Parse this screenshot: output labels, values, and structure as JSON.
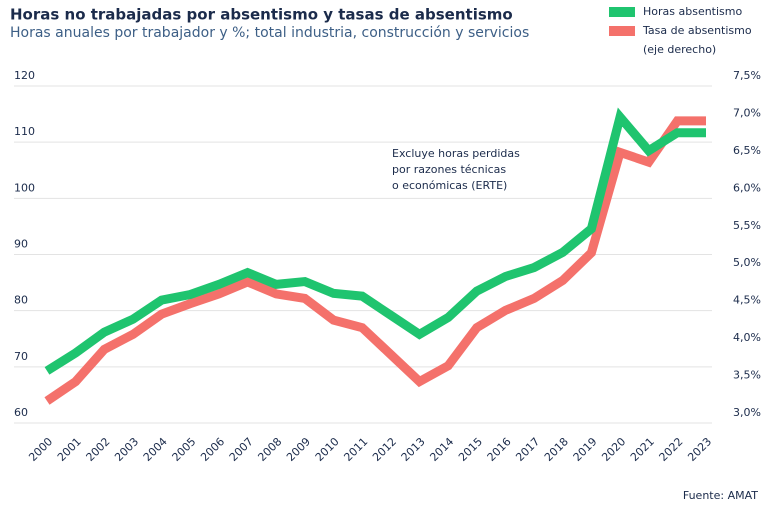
{
  "chart_data": {
    "type": "line",
    "title": "Horas no trabajadas por absentismo y tasas de absentismo",
    "subtitle": "Horas anuales por trabajador y %; total industria, construcción y servicios",
    "annotation": [
      "Excluye horas perdidas",
      "por razones técnicas",
      "o económicas (ERTE)"
    ],
    "legend_note": "(eje derecho)",
    "source": "Fuente: AMAT",
    "categories": [
      "2000",
      "2001",
      "2002",
      "2003",
      "2004",
      "2005",
      "2006",
      "2007",
      "2008",
      "2009",
      "2010",
      "2011",
      "2012",
      "2013",
      "2014",
      "2015",
      "2016",
      "2017",
      "2018",
      "2019",
      "2020",
      "2021",
      "2022",
      "2023"
    ],
    "series": [
      {
        "name": "Horas absentismo",
        "color": "#1fc46f",
        "values": [
          67.5,
          70.7,
          74.4,
          76.7,
          80.1,
          81.1,
          82.9,
          85,
          82.9,
          83.4,
          81.3,
          80.8,
          77.4,
          74,
          77,
          81.7,
          84.3,
          85.9,
          88.6,
          92.8,
          112.7,
          106.7,
          109.9,
          109.9
        ]
      },
      {
        "name": "Tasa de absentismo",
        "color": "#f4716b",
        "axis": "y2",
        "values": [
          3.16,
          3.42,
          3.85,
          4.05,
          4.32,
          4.46,
          4.59,
          4.75,
          4.59,
          4.53,
          4.24,
          4.14,
          3.78,
          3.42,
          3.63,
          4.14,
          4.37,
          4.53,
          4.77,
          5.14,
          6.48,
          6.35,
          6.9,
          6.9
        ]
      }
    ],
    "ylim": [
      60,
      120
    ],
    "yticks": [
      60,
      70,
      80,
      90,
      100,
      110,
      120
    ],
    "y2lim": [
      3.0,
      7.5
    ],
    "y2ticks": [
      {
        "value": 3.0,
        "label": "3,0%"
      },
      {
        "value": 3.5,
        "label": "3,5%"
      },
      {
        "value": 4.0,
        "label": "4,0%"
      },
      {
        "value": 4.5,
        "label": "4,5%"
      },
      {
        "value": 5.0,
        "label": "5,0%"
      },
      {
        "value": 5.5,
        "label": "5,5%"
      },
      {
        "value": 6.0,
        "label": "6,0%"
      },
      {
        "value": 6.5,
        "label": "6,5%"
      },
      {
        "value": 7.0,
        "label": "7,0%"
      },
      {
        "value": 7.5,
        "label": "7,5%"
      }
    ],
    "grid": true
  }
}
